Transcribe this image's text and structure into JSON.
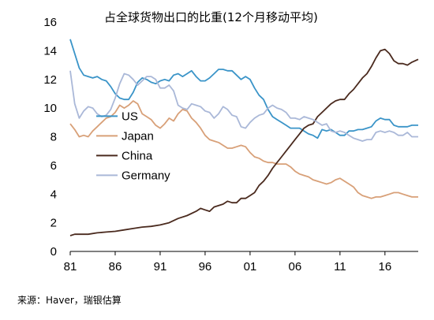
{
  "chart_data": {
    "type": "line",
    "title": "占全球货物出口的比重(12个月移动平均)",
    "xlabel": "",
    "ylabel": "",
    "xlim": [
      1981,
      2019.7
    ],
    "ylim": [
      0,
      16
    ],
    "xticks": [
      1981,
      1986,
      1991,
      1996,
      2001,
      2006,
      2011,
      2016
    ],
    "xtick_labels": [
      "81",
      "86",
      "91",
      "96",
      "01",
      "06",
      "11",
      "16"
    ],
    "yticks": [
      0,
      2,
      4,
      6,
      8,
      10,
      12,
      14,
      16
    ],
    "grid": false,
    "legend_position": "center-left",
    "series": [
      {
        "name": "US",
        "color": "#3a94c8",
        "points": [
          [
            1981.0,
            14.8
          ],
          [
            1981.5,
            13.8
          ],
          [
            1982.0,
            12.8
          ],
          [
            1982.5,
            12.3
          ],
          [
            1983.0,
            12.2
          ],
          [
            1983.5,
            12.1
          ],
          [
            1984.0,
            12.2
          ],
          [
            1984.5,
            12.0
          ],
          [
            1985.0,
            11.9
          ],
          [
            1985.5,
            11.5
          ],
          [
            1986.0,
            11.0
          ],
          [
            1986.5,
            10.7
          ],
          [
            1987.0,
            10.6
          ],
          [
            1987.5,
            10.6
          ],
          [
            1988.0,
            11.1
          ],
          [
            1988.5,
            11.8
          ],
          [
            1989.0,
            12.1
          ],
          [
            1989.5,
            12.0
          ],
          [
            1990.0,
            11.8
          ],
          [
            1990.5,
            11.7
          ],
          [
            1991.0,
            11.9
          ],
          [
            1991.5,
            12.0
          ],
          [
            1992.0,
            11.9
          ],
          [
            1992.5,
            12.3
          ],
          [
            1993.0,
            12.4
          ],
          [
            1993.5,
            12.2
          ],
          [
            1994.0,
            12.4
          ],
          [
            1994.5,
            12.6
          ],
          [
            1995.0,
            12.2
          ],
          [
            1995.5,
            11.9
          ],
          [
            1996.0,
            11.9
          ],
          [
            1996.5,
            12.1
          ],
          [
            1997.0,
            12.4
          ],
          [
            1997.5,
            12.7
          ],
          [
            1998.0,
            12.7
          ],
          [
            1998.5,
            12.6
          ],
          [
            1999.0,
            12.6
          ],
          [
            1999.5,
            12.3
          ],
          [
            2000.0,
            12.0
          ],
          [
            2000.5,
            12.2
          ],
          [
            2001.0,
            12.0
          ],
          [
            2001.5,
            11.4
          ],
          [
            2002.0,
            10.9
          ],
          [
            2002.5,
            10.6
          ],
          [
            2003.0,
            9.9
          ],
          [
            2003.5,
            9.4
          ],
          [
            2004.0,
            9.2
          ],
          [
            2004.5,
            9.0
          ],
          [
            2005.0,
            8.8
          ],
          [
            2005.5,
            8.6
          ],
          [
            2006.0,
            8.6
          ],
          [
            2006.5,
            8.6
          ],
          [
            2007.0,
            8.4
          ],
          [
            2007.5,
            8.2
          ],
          [
            2008.0,
            8.1
          ],
          [
            2008.5,
            7.9
          ],
          [
            2009.0,
            8.5
          ],
          [
            2009.5,
            8.4
          ],
          [
            2010.0,
            8.5
          ],
          [
            2010.5,
            8.3
          ],
          [
            2011.0,
            8.1
          ],
          [
            2011.5,
            8.1
          ],
          [
            2012.0,
            8.4
          ],
          [
            2012.5,
            8.4
          ],
          [
            2013.0,
            8.5
          ],
          [
            2013.5,
            8.5
          ],
          [
            2014.0,
            8.6
          ],
          [
            2014.5,
            8.7
          ],
          [
            2015.0,
            9.1
          ],
          [
            2015.5,
            9.3
          ],
          [
            2016.0,
            9.2
          ],
          [
            2016.5,
            9.2
          ],
          [
            2017.0,
            8.8
          ],
          [
            2017.5,
            8.7
          ],
          [
            2018.0,
            8.7
          ],
          [
            2018.5,
            8.7
          ],
          [
            2019.0,
            8.8
          ],
          [
            2019.7,
            8.8
          ]
        ]
      },
      {
        "name": "Japan",
        "color": "#d8a078",
        "points": [
          [
            1981.0,
            8.9
          ],
          [
            1981.5,
            8.5
          ],
          [
            1982.0,
            8.0
          ],
          [
            1982.5,
            8.1
          ],
          [
            1983.0,
            8.0
          ],
          [
            1983.5,
            8.4
          ],
          [
            1984.0,
            8.7
          ],
          [
            1984.5,
            9.0
          ],
          [
            1985.0,
            9.3
          ],
          [
            1985.5,
            9.4
          ],
          [
            1986.0,
            9.7
          ],
          [
            1986.5,
            10.2
          ],
          [
            1987.0,
            10.0
          ],
          [
            1987.5,
            10.2
          ],
          [
            1988.0,
            10.5
          ],
          [
            1988.5,
            10.3
          ],
          [
            1989.0,
            9.6
          ],
          [
            1989.5,
            9.4
          ],
          [
            1990.0,
            9.2
          ],
          [
            1990.5,
            8.8
          ],
          [
            1991.0,
            8.6
          ],
          [
            1991.5,
            8.9
          ],
          [
            1992.0,
            9.3
          ],
          [
            1992.5,
            9.1
          ],
          [
            1993.0,
            9.6
          ],
          [
            1993.5,
            9.9
          ],
          [
            1994.0,
            9.8
          ],
          [
            1994.5,
            9.3
          ],
          [
            1995.0,
            9.0
          ],
          [
            1995.5,
            8.6
          ],
          [
            1996.0,
            8.1
          ],
          [
            1996.5,
            7.8
          ],
          [
            1997.0,
            7.7
          ],
          [
            1997.5,
            7.6
          ],
          [
            1998.0,
            7.4
          ],
          [
            1998.5,
            7.2
          ],
          [
            1999.0,
            7.2
          ],
          [
            1999.5,
            7.3
          ],
          [
            2000.0,
            7.4
          ],
          [
            2000.5,
            7.3
          ],
          [
            2001.0,
            6.9
          ],
          [
            2001.5,
            6.6
          ],
          [
            2002.0,
            6.5
          ],
          [
            2002.5,
            6.3
          ],
          [
            2003.0,
            6.2
          ],
          [
            2003.5,
            6.2
          ],
          [
            2004.0,
            6.1
          ],
          [
            2004.5,
            6.1
          ],
          [
            2005.0,
            6.1
          ],
          [
            2005.5,
            5.9
          ],
          [
            2006.0,
            5.6
          ],
          [
            2006.5,
            5.4
          ],
          [
            2007.0,
            5.3
          ],
          [
            2007.5,
            5.2
          ],
          [
            2008.0,
            5.0
          ],
          [
            2008.5,
            4.9
          ],
          [
            2009.0,
            4.8
          ],
          [
            2009.5,
            4.7
          ],
          [
            2010.0,
            4.8
          ],
          [
            2010.5,
            5.0
          ],
          [
            2011.0,
            5.1
          ],
          [
            2011.5,
            4.9
          ],
          [
            2012.0,
            4.7
          ],
          [
            2012.5,
            4.5
          ],
          [
            2013.0,
            4.1
          ],
          [
            2013.5,
            3.9
          ],
          [
            2014.0,
            3.8
          ],
          [
            2014.5,
            3.7
          ],
          [
            2015.0,
            3.8
          ],
          [
            2015.5,
            3.8
          ],
          [
            2016.0,
            3.9
          ],
          [
            2016.5,
            4.0
          ],
          [
            2017.0,
            4.1
          ],
          [
            2017.5,
            4.1
          ],
          [
            2018.0,
            4.0
          ],
          [
            2018.5,
            3.9
          ],
          [
            2019.0,
            3.8
          ],
          [
            2019.7,
            3.8
          ]
        ]
      },
      {
        "name": "China",
        "color": "#4a2a1e",
        "points": [
          [
            1981.0,
            1.1
          ],
          [
            1981.5,
            1.2
          ],
          [
            1982.0,
            1.2
          ],
          [
            1983.0,
            1.2
          ],
          [
            1984.0,
            1.3
          ],
          [
            1985.0,
            1.35
          ],
          [
            1986.0,
            1.4
          ],
          [
            1987.0,
            1.5
          ],
          [
            1988.0,
            1.6
          ],
          [
            1989.0,
            1.7
          ],
          [
            1990.0,
            1.75
          ],
          [
            1991.0,
            1.85
          ],
          [
            1992.0,
            2.0
          ],
          [
            1993.0,
            2.3
          ],
          [
            1994.0,
            2.5
          ],
          [
            1995.0,
            2.8
          ],
          [
            1995.5,
            3.0
          ],
          [
            1996.0,
            2.9
          ],
          [
            1996.5,
            2.8
          ],
          [
            1997.0,
            3.1
          ],
          [
            1998.0,
            3.3
          ],
          [
            1998.5,
            3.5
          ],
          [
            1999.0,
            3.4
          ],
          [
            1999.5,
            3.4
          ],
          [
            2000.0,
            3.7
          ],
          [
            2000.5,
            3.7
          ],
          [
            2001.0,
            3.9
          ],
          [
            2001.5,
            4.1
          ],
          [
            2002.0,
            4.6
          ],
          [
            2002.5,
            4.9
          ],
          [
            2003.0,
            5.3
          ],
          [
            2003.5,
            5.8
          ],
          [
            2004.0,
            6.2
          ],
          [
            2004.5,
            6.6
          ],
          [
            2005.0,
            7.0
          ],
          [
            2005.5,
            7.4
          ],
          [
            2006.0,
            7.8
          ],
          [
            2006.5,
            8.2
          ],
          [
            2007.0,
            8.6
          ],
          [
            2007.5,
            8.8
          ],
          [
            2008.0,
            8.9
          ],
          [
            2008.5,
            9.4
          ],
          [
            2009.0,
            9.7
          ],
          [
            2009.5,
            10.0
          ],
          [
            2010.0,
            10.3
          ],
          [
            2010.5,
            10.5
          ],
          [
            2011.0,
            10.6
          ],
          [
            2011.5,
            10.6
          ],
          [
            2012.0,
            11.0
          ],
          [
            2012.5,
            11.3
          ],
          [
            2013.0,
            11.7
          ],
          [
            2013.5,
            12.1
          ],
          [
            2014.0,
            12.4
          ],
          [
            2014.5,
            12.9
          ],
          [
            2015.0,
            13.5
          ],
          [
            2015.5,
            14.0
          ],
          [
            2016.0,
            14.1
          ],
          [
            2016.5,
            13.8
          ],
          [
            2017.0,
            13.3
          ],
          [
            2017.5,
            13.1
          ],
          [
            2018.0,
            13.1
          ],
          [
            2018.5,
            13.0
          ],
          [
            2019.0,
            13.2
          ],
          [
            2019.7,
            13.4
          ]
        ]
      },
      {
        "name": "Germany",
        "color": "#aab8d8",
        "points": [
          [
            1981.0,
            12.6
          ],
          [
            1981.5,
            10.3
          ],
          [
            1982.0,
            9.3
          ],
          [
            1982.5,
            9.8
          ],
          [
            1983.0,
            10.1
          ],
          [
            1983.5,
            10.0
          ],
          [
            1984.0,
            9.6
          ],
          [
            1984.5,
            9.4
          ],
          [
            1985.0,
            9.5
          ],
          [
            1985.5,
            9.9
          ],
          [
            1986.0,
            10.7
          ],
          [
            1986.5,
            11.7
          ],
          [
            1987.0,
            12.4
          ],
          [
            1987.5,
            12.3
          ],
          [
            1988.0,
            12.0
          ],
          [
            1988.5,
            11.6
          ],
          [
            1989.0,
            11.9
          ],
          [
            1989.5,
            12.2
          ],
          [
            1990.0,
            12.2
          ],
          [
            1990.5,
            12.0
          ],
          [
            1991.0,
            11.4
          ],
          [
            1991.5,
            11.4
          ],
          [
            1992.0,
            11.6
          ],
          [
            1992.5,
            11.2
          ],
          [
            1993.0,
            10.2
          ],
          [
            1993.5,
            10.0
          ],
          [
            1994.0,
            9.9
          ],
          [
            1994.5,
            10.3
          ],
          [
            1995.0,
            10.2
          ],
          [
            1995.5,
            10.1
          ],
          [
            1996.0,
            9.8
          ],
          [
            1996.5,
            9.7
          ],
          [
            1997.0,
            9.3
          ],
          [
            1997.5,
            9.6
          ],
          [
            1998.0,
            10.1
          ],
          [
            1998.5,
            9.9
          ],
          [
            1999.0,
            9.5
          ],
          [
            1999.5,
            9.4
          ],
          [
            2000.0,
            8.7
          ],
          [
            2000.5,
            8.6
          ],
          [
            2001.0,
            9.0
          ],
          [
            2001.5,
            9.3
          ],
          [
            2002.0,
            9.5
          ],
          [
            2002.5,
            9.6
          ],
          [
            2003.0,
            10.0
          ],
          [
            2003.5,
            10.2
          ],
          [
            2004.0,
            10.0
          ],
          [
            2004.5,
            9.9
          ],
          [
            2005.0,
            9.7
          ],
          [
            2005.5,
            9.3
          ],
          [
            2006.0,
            9.3
          ],
          [
            2006.5,
            9.2
          ],
          [
            2007.0,
            9.4
          ],
          [
            2007.5,
            9.3
          ],
          [
            2008.0,
            9.2
          ],
          [
            2008.5,
            9.0
          ],
          [
            2009.0,
            8.8
          ],
          [
            2009.5,
            8.9
          ],
          [
            2010.0,
            8.4
          ],
          [
            2010.5,
            8.3
          ],
          [
            2011.0,
            8.4
          ],
          [
            2011.5,
            8.3
          ],
          [
            2012.0,
            8.1
          ],
          [
            2012.5,
            7.9
          ],
          [
            2013.0,
            7.8
          ],
          [
            2013.5,
            7.7
          ],
          [
            2014.0,
            7.8
          ],
          [
            2014.5,
            7.8
          ],
          [
            2015.0,
            8.3
          ],
          [
            2015.5,
            8.4
          ],
          [
            2016.0,
            8.3
          ],
          [
            2016.5,
            8.4
          ],
          [
            2017.0,
            8.3
          ],
          [
            2017.5,
            8.1
          ],
          [
            2018.0,
            8.1
          ],
          [
            2018.5,
            8.3
          ],
          [
            2019.0,
            8.0
          ],
          [
            2019.7,
            8.0
          ]
        ]
      }
    ]
  },
  "source": "来源：Haver，瑞银估算"
}
